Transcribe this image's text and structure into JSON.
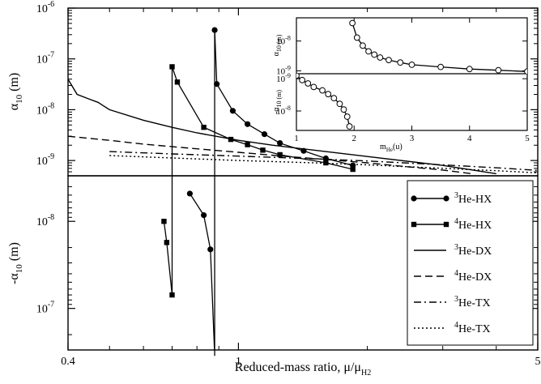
{
  "chart_data": [
    {
      "type": "line",
      "panel": "upper",
      "xlabel": "Reduced-mass ratio, μ/μ",
      "xlabel_sub": "H2",
      "ylabel": "α",
      "ylabel_sub": "10",
      "ylabel_unit": " (m)",
      "x_scale": "log",
      "y_scale": "log",
      "xlim": [
        0.4,
        5
      ],
      "ylim": [
        5e-10,
        1e-06
      ],
      "x_ticks": [
        {
          "v": 0.4,
          "label": "0.4"
        },
        {
          "v": 1,
          "label": "1"
        },
        {
          "v": 5,
          "label": "5"
        }
      ],
      "y_ticks": [
        {
          "v": 1e-09,
          "base": "10",
          "exp": "-9"
        },
        {
          "v": 1e-08,
          "base": "10",
          "exp": "-8"
        },
        {
          "v": 1e-07,
          "base": "10",
          "exp": "-7"
        },
        {
          "v": 1e-06,
          "base": "10",
          "exp": "-6"
        }
      ],
      "series": [
        {
          "key": "he3hx",
          "marker": "circle",
          "dash": "solid",
          "x": [
            0.88,
            0.89,
            0.97,
            1.05,
            1.15,
            1.25,
            1.42,
            1.6,
            1.85
          ],
          "y": [
            3.7e-07,
            3.2e-08,
            9.5e-09,
            5.2e-09,
            3.3e-09,
            2.2e-09,
            1.55e-09,
            1.1e-09,
            8e-10
          ]
        },
        {
          "key": "he4hx",
          "marker": "square",
          "dash": "solid",
          "x": [
            0.7,
            0.72,
            0.83,
            0.96,
            1.05,
            1.14,
            1.25,
            1.6,
            1.85
          ],
          "y": [
            7e-08,
            3.5e-08,
            4.5e-09,
            2.6e-09,
            2.05e-09,
            1.6e-09,
            1.3e-09,
            9e-10,
            6.7e-10
          ]
        },
        {
          "key": "he3dx",
          "marker": "none",
          "dash": "solid",
          "x": [
            0.4,
            0.42,
            0.45,
            0.47,
            0.5,
            0.6,
            0.7,
            0.8,
            1.0,
            1.2,
            1.5,
            2.0,
            3.0,
            4.0
          ],
          "y": [
            4e-08,
            2e-08,
            1.6e-08,
            1.4e-08,
            1e-08,
            6.2e-09,
            4.5e-09,
            3.5e-09,
            2.5e-09,
            2e-09,
            1.6e-09,
            1.2e-09,
            8e-10,
            5.5e-10
          ]
        },
        {
          "key": "he4dx",
          "marker": "none",
          "dash": "dashed",
          "x": [
            0.4,
            0.5,
            0.6,
            0.8,
            1.0,
            1.3,
            1.6,
            2.0,
            2.5,
            3.0,
            3.5
          ],
          "y": [
            3e-09,
            2.5e-09,
            2.1e-09,
            1.7e-09,
            1.45e-09,
            1.2e-09,
            1.05e-09,
            9e-10,
            7.5e-10,
            6.5e-10,
            5.5e-10
          ]
        },
        {
          "key": "he3tx",
          "marker": "none",
          "dash": "dashdot",
          "x": [
            0.5,
            0.7,
            1.0,
            1.5,
            2.0,
            3.0,
            4.0,
            5.0
          ],
          "y": [
            1.5e-09,
            1.35e-09,
            1.22e-09,
            1.08e-09,
            9.8e-10,
            8.2e-10,
            7.2e-10,
            6.4e-10
          ]
        },
        {
          "key": "he4tx",
          "marker": "none",
          "dash": "dotted",
          "x": [
            0.5,
            0.7,
            1.0,
            1.5,
            2.0,
            3.0,
            4.0,
            5.0
          ],
          "y": [
            1.25e-09,
            1.12e-09,
            1e-09,
            9e-10,
            8.2e-10,
            7e-10,
            6.3e-10,
            5.7e-10
          ]
        }
      ]
    },
    {
      "type": "line",
      "panel": "lower",
      "ylabel": "-α",
      "ylabel_sub": "10",
      "ylabel_unit": " (m)",
      "x_scale": "log",
      "y_scale": "log",
      "y_inverted": true,
      "xlim": [
        0.4,
        5
      ],
      "ylim": [
        3e-09,
        3e-07
      ],
      "y_ticks": [
        {
          "v": 1e-08,
          "base": "10",
          "exp": "-8"
        },
        {
          "v": 1e-07,
          "base": "10",
          "exp": "-7"
        }
      ],
      "series": [
        {
          "key": "he3hx",
          "marker": "circle",
          "dash": "solid",
          "x": [
            0.77,
            0.83,
            0.86,
            0.88
          ],
          "y": [
            4.8e-09,
            8.5e-09,
            2.1e-08,
            3.5e-07
          ]
        },
        {
          "key": "he4hx",
          "marker": "square",
          "dash": "solid",
          "x": [
            0.67,
            0.68,
            0.7
          ],
          "y": [
            1e-08,
            1.75e-08,
            7e-08
          ]
        }
      ],
      "legend": {
        "placement": "lower-right",
        "entries": [
          {
            "key": "he3hx",
            "sup": "3",
            "text": "He-HX"
          },
          {
            "key": "he4hx",
            "sup": "4",
            "text": "He-HX"
          },
          {
            "key": "he3dx",
            "sup": "3",
            "text": "He-DX"
          },
          {
            "key": "he4dx",
            "sup": "4",
            "text": "He-DX"
          },
          {
            "key": "he3tx",
            "sup": "3",
            "text": "He-TX"
          },
          {
            "key": "he4tx",
            "sup": "4",
            "text": "He-TX"
          }
        ]
      }
    },
    {
      "type": "line",
      "panel": "inset-upper",
      "ylabel": "α",
      "ylabel_sub": "10 (m)",
      "x_scale": "linear",
      "y_scale": "log",
      "xlim": [
        1,
        5
      ],
      "ylim": [
        8e-10,
        6e-08
      ],
      "y_ticks": [
        {
          "v": 1e-08,
          "base": "10",
          "exp": "-8"
        },
        {
          "v": 1e-09,
          "base": "10",
          "exp": "-9"
        }
      ],
      "series": [
        {
          "key": "inset-pos",
          "marker": "open-circle",
          "dash": "solid",
          "x": [
            1.97,
            2.05,
            2.15,
            2.25,
            2.35,
            2.45,
            2.6,
            2.8,
            3.0,
            3.5,
            4.0,
            4.5,
            5.0
          ],
          "y": [
            4e-08,
            1.3e-08,
            7e-09,
            4.5e-09,
            3.5e-09,
            2.8e-09,
            2.3e-09,
            1.9e-09,
            1.6e-09,
            1.35e-09,
            1.15e-09,
            1.05e-09,
            9.5e-10
          ]
        }
      ]
    },
    {
      "type": "line",
      "panel": "inset-lower",
      "ylabel": "-α",
      "ylabel_sub": "10 (m)",
      "xlabel": "m",
      "xlabel_sub": "He",
      "xlabel_unit": "(u)",
      "x_scale": "linear",
      "y_scale": "log",
      "y_inverted": true,
      "xlim": [
        1,
        5
      ],
      "ylim": [
        7e-10,
        4e-08
      ],
      "x_ticks": [
        {
          "v": 1,
          "label": "1"
        },
        {
          "v": 2,
          "label": "2"
        },
        {
          "v": 3,
          "label": "3"
        },
        {
          "v": 4,
          "label": "4"
        },
        {
          "v": 5,
          "label": "5"
        }
      ],
      "y_ticks": [
        {
          "v": 1e-09,
          "base": "10",
          "exp": "-9"
        },
        {
          "v": 1e-08,
          "base": "10",
          "exp": "-8"
        }
      ],
      "series": [
        {
          "key": "inset-neg",
          "marker": "open-circle",
          "dash": "solid",
          "x": [
            1.0,
            1.1,
            1.2,
            1.3,
            1.45,
            1.55,
            1.65,
            1.75,
            1.82,
            1.88,
            1.92
          ],
          "y": [
            8e-10,
            1.1e-09,
            1.4e-09,
            1.8e-09,
            2.3e-09,
            3e-09,
            4e-09,
            6e-09,
            9e-09,
            1.5e-08,
            3e-08
          ]
        }
      ]
    }
  ]
}
